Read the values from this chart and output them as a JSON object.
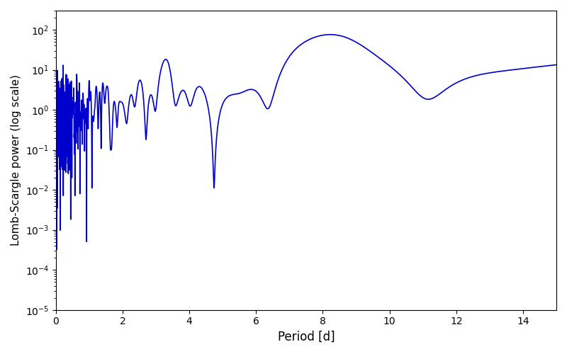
{
  "title": "",
  "xlabel": "Period [d]",
  "ylabel": "Lomb-Scargle power (log scale)",
  "xlim": [
    0,
    15
  ],
  "ylim": [
    1e-05,
    300
  ],
  "line_color": "#0000cc",
  "line_width": 1.2,
  "figsize": [
    8.0,
    5.0
  ],
  "dpi": 100,
  "xticks": [
    0,
    2,
    4,
    6,
    8,
    10,
    12,
    14
  ],
  "background_color": "#ffffff"
}
